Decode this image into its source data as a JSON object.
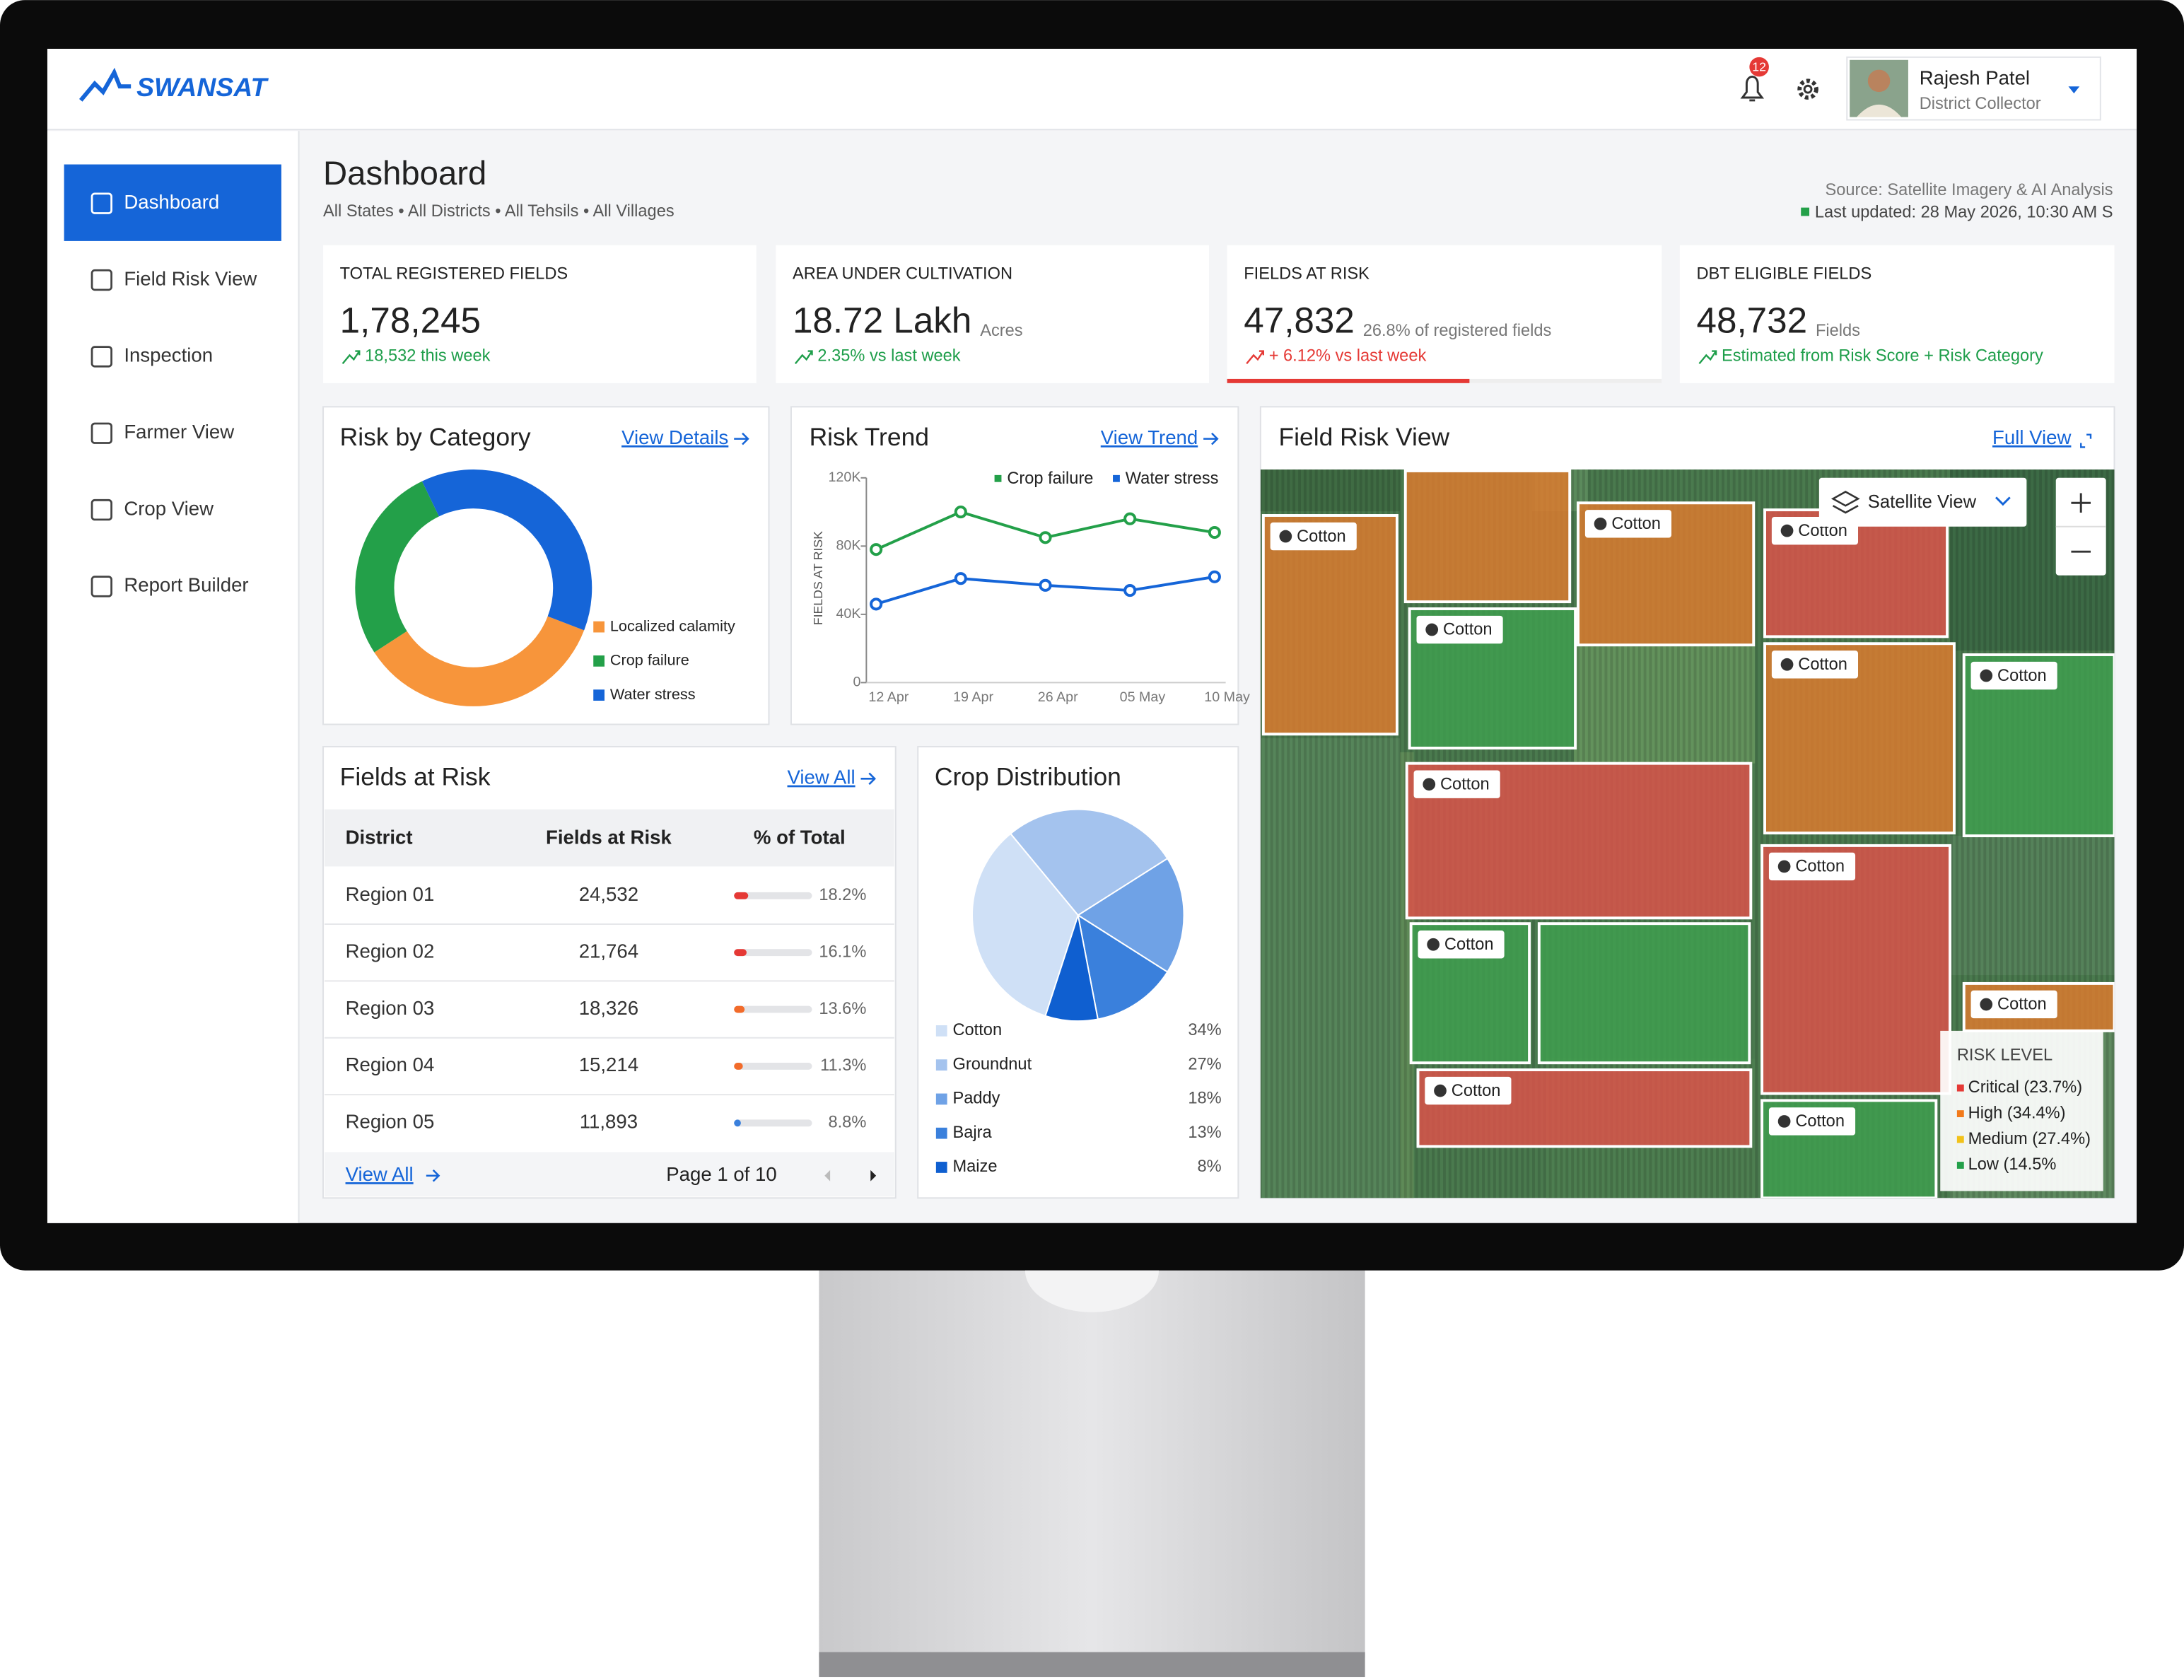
{
  "header": {
    "logo": "SWANSAT",
    "notification_count": "12",
    "user_name": "Rajesh Patel",
    "user_role": "District Collector"
  },
  "nav": {
    "items": [
      "Dashboard",
      "Field Risk View",
      "Inspection",
      "Farmer View",
      "Crop View",
      "Report Builder"
    ],
    "active": 0
  },
  "page": {
    "title": "Dashboard",
    "filters": "All States • All Districts • All Tehsils • All Villages",
    "source": "Source: Satellite Imagery & AI Analysis",
    "updated": "Last updated: 28 May 2026, 10:30 AM S"
  },
  "kpis": [
    {
      "label": "TOTAL REGISTERED FIELDS",
      "value": "1,78,245",
      "change": "18,532 this week",
      "color": "#1e9e4a"
    },
    {
      "label": "AREA UNDER CULTIVATION",
      "value": "18.72 Lakh",
      "unit": "Acres",
      "change": "2.35% vs last week",
      "color": "#1e9e4a"
    },
    {
      "label": "FIELDS AT RISK",
      "value": "47,832",
      "unit": "26.8% of registered fields",
      "change": "+ 6.12% vs last week",
      "color": "#e53935"
    },
    {
      "label": "DBT ELIGIBLE FIELDS",
      "value": "48,732",
      "unit": "Fields",
      "change": "Estimated from Risk Score + Risk Category",
      "color": "#1e9e4a"
    }
  ],
  "chart_data": [
    {
      "type": "donut",
      "title": "Risk by Category",
      "link": "View Details",
      "categories": [
        "Localized calamity",
        "Crop failure",
        "Water stress"
      ],
      "values": [
        35,
        27,
        38
      ],
      "colors": [
        "#f7953b",
        "#23a049",
        "#1565d8"
      ]
    },
    {
      "type": "line",
      "title": "Risk Trend",
      "link": "View Trend",
      "y_label": "FIELDS AT RISK",
      "categories": [
        "12 Apr",
        "19 Apr",
        "26 Apr",
        "05 May",
        "10 May"
      ],
      "series": [
        {
          "name": "Crop failure",
          "color": "#23a049",
          "values": [
            78000,
            100000,
            85000,
            96000,
            88000
          ]
        },
        {
          "name": "Water stress",
          "color": "#1565d8",
          "values": [
            46000,
            61000,
            57000,
            54000,
            62000
          ]
        }
      ],
      "ylim": [
        0,
        120000
      ],
      "yticks": [
        0,
        {
          "value": 40000,
          "label": "40K"
        },
        {
          "value": 80000,
          "label": "80K"
        },
        {
          "value": 120000,
          "label": "120K"
        }
      ]
    },
    {
      "type": "pie",
      "title": "Crop Distribution",
      "categories": [
        "Cotton",
        "Groundnut",
        "Paddy",
        "Bajra",
        "Maize"
      ],
      "values": [
        34,
        27,
        18,
        13,
        8
      ],
      "value_labels": [
        "34%",
        "27%",
        "18%",
        "13%",
        "8%"
      ],
      "colors": [
        "#cfe0f6",
        "#a4c3ee",
        "#6fa2e6",
        "#3a80dc",
        "#0f5fd0"
      ]
    }
  ],
  "table": {
    "title": "Fields at Risk",
    "link": "View All",
    "columns": [
      "District",
      "Fields at Risk",
      "% of Total"
    ],
    "rows": [
      [
        "Region 01",
        "24,532",
        "18.2%"
      ],
      [
        "Region 02",
        "21,764",
        "16.1%"
      ],
      [
        "Region 03",
        "18,326",
        "13.6%"
      ],
      [
        "Region 04",
        "15,214",
        "11.3%"
      ],
      [
        "Region 05",
        "11,893",
        "8.8%"
      ]
    ],
    "percent": [
      18.2,
      16.1,
      13.6,
      11.3,
      8.8
    ],
    "bar_colors": [
      "#e53935",
      "#e53935",
      "#f26b2a",
      "#f26b2a",
      "#3a80dc"
    ],
    "footer_link": "View All",
    "pagination": "Page 1 of 10"
  },
  "map": {
    "title": "Field Risk View",
    "link": "Full View",
    "layer": "Satellite View",
    "fields": [
      {
        "label": "Cotton",
        "color": "#e07b2e"
      },
      {
        "label": "Cotton",
        "color": "#e07b2e"
      },
      {
        "label": "Cotton",
        "color": "#e0524a"
      },
      {
        "label": "Cotton",
        "color": "#3fa04f"
      },
      {
        "label": "Cotton",
        "color": "#e07b2e"
      },
      {
        "label": "Cotton",
        "color": "#3fa04f"
      },
      {
        "label": "Cotton",
        "color": "#e0524a"
      },
      {
        "label": "Cotton",
        "color": "#e0524a"
      },
      {
        "label": "Cotton",
        "color": "#3fa04f"
      },
      {
        "label": "Cotton",
        "color": "#e07b2e"
      },
      {
        "label": "Cotton",
        "color": "#e0524a"
      },
      {
        "label": "Cotton",
        "color": "#3fa04f"
      }
    ],
    "legend_title": "RISK LEVEL",
    "legend": [
      {
        "label": "Critical (23.7%)",
        "color": "#e53935"
      },
      {
        "label": "High (34.4%)",
        "color": "#f27a1a"
      },
      {
        "label": "Medium (27.4%)",
        "color": "#f2c21a"
      },
      {
        "label": "Low (14.5%",
        "color": "#23a049"
      }
    ]
  }
}
